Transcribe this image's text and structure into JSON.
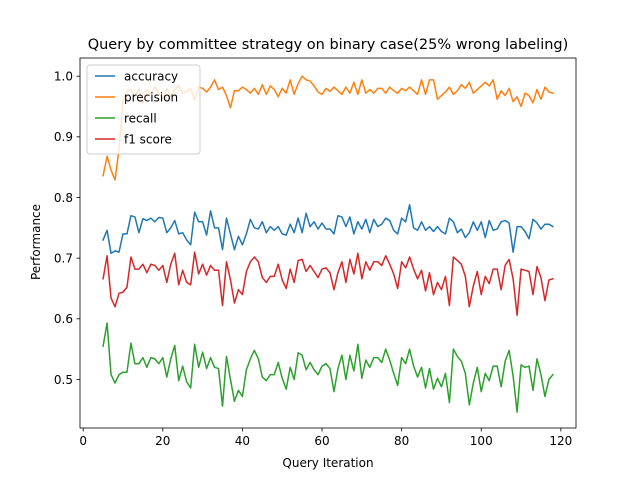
{
  "chart_data": {
    "type": "line",
    "title": "Query by committee strategy on binary case(25% wrong labeling)",
    "xlabel": "Query Iteration",
    "ylabel": "Performance",
    "xlim": [
      -0.8,
      123.8
    ],
    "ylim": [
      0.42,
      1.03
    ],
    "xticks": [
      0,
      20,
      40,
      60,
      80,
      100,
      120
    ],
    "yticks": [
      0.5,
      0.6,
      0.7,
      0.8,
      0.9,
      1.0
    ],
    "ytick_labels": [
      "0.5",
      "0.6",
      "0.7",
      "0.8",
      "0.9",
      "1.0"
    ],
    "grid": false,
    "legend_position": "top-left",
    "x": [
      5,
      6,
      7,
      8,
      9,
      10,
      11,
      12,
      13,
      14,
      15,
      16,
      17,
      18,
      19,
      20,
      21,
      22,
      23,
      24,
      25,
      26,
      27,
      28,
      29,
      30,
      31,
      32,
      33,
      34,
      35,
      36,
      37,
      38,
      39,
      40,
      41,
      42,
      43,
      44,
      45,
      46,
      47,
      48,
      49,
      50,
      51,
      52,
      53,
      54,
      55,
      56,
      57,
      58,
      59,
      60,
      61,
      62,
      63,
      64,
      65,
      66,
      67,
      68,
      69,
      70,
      71,
      72,
      73,
      74,
      75,
      76,
      77,
      78,
      79,
      80,
      81,
      82,
      83,
      84,
      85,
      86,
      87,
      88,
      89,
      90,
      91,
      92,
      93,
      94,
      95,
      96,
      97,
      98,
      99,
      100,
      101,
      102,
      103,
      104,
      105,
      106,
      107,
      108,
      109,
      110,
      111,
      112,
      113,
      114,
      115,
      116,
      117,
      118
    ],
    "series": [
      {
        "name": "accuracy",
        "color": "#1f77b4",
        "values": [
          0.73,
          0.746,
          0.708,
          0.712,
          0.71,
          0.74,
          0.74,
          0.77,
          0.768,
          0.742,
          0.765,
          0.762,
          0.766,
          0.76,
          0.767,
          0.766,
          0.742,
          0.75,
          0.762,
          0.74,
          0.742,
          0.73,
          0.722,
          0.776,
          0.76,
          0.76,
          0.738,
          0.778,
          0.75,
          0.75,
          0.714,
          0.766,
          0.74,
          0.714,
          0.736,
          0.722,
          0.74,
          0.764,
          0.75,
          0.748,
          0.76,
          0.742,
          0.752,
          0.746,
          0.752,
          0.74,
          0.738,
          0.756,
          0.742,
          0.766,
          0.742,
          0.774,
          0.752,
          0.76,
          0.748,
          0.758,
          0.748,
          0.748,
          0.74,
          0.77,
          0.768,
          0.752,
          0.768,
          0.74,
          0.76,
          0.748,
          0.764,
          0.742,
          0.764,
          0.752,
          0.756,
          0.766,
          0.762,
          0.746,
          0.74,
          0.766,
          0.76,
          0.788,
          0.75,
          0.746,
          0.76,
          0.746,
          0.752,
          0.744,
          0.752,
          0.744,
          0.74,
          0.766,
          0.76,
          0.742,
          0.748,
          0.734,
          0.742,
          0.76,
          0.746,
          0.76,
          0.734,
          0.762,
          0.746,
          0.748,
          0.76,
          0.762,
          0.758,
          0.71,
          0.752,
          0.752,
          0.744,
          0.732,
          0.764,
          0.758,
          0.748,
          0.756,
          0.756,
          0.752
        ],
        "x_override": [
          5,
          6,
          7,
          8,
          9,
          10,
          11,
          12,
          13,
          14,
          15,
          16,
          17,
          18,
          19,
          20,
          21,
          22,
          23,
          24,
          25,
          26,
          27,
          28,
          29,
          30,
          31,
          32,
          33,
          34,
          35,
          36,
          37,
          38,
          39,
          40,
          41,
          42,
          43,
          44,
          45,
          46,
          47,
          48,
          49,
          50,
          51,
          52,
          53,
          54,
          55,
          56,
          57,
          58,
          59,
          60,
          61,
          62,
          63,
          64,
          65,
          66,
          67,
          68,
          69,
          70,
          71,
          72,
          73,
          74,
          75,
          76,
          77,
          78,
          79,
          80,
          81,
          82,
          83,
          84,
          85,
          86,
          87,
          88,
          89,
          90,
          91,
          92,
          93,
          94,
          95,
          96,
          97,
          98,
          99,
          100,
          101,
          102,
          103,
          104,
          105,
          106,
          107,
          108,
          109,
          110,
          111,
          112,
          113,
          114,
          115,
          116,
          117,
          118
        ]
      },
      {
        "name": "precision",
        "color": "#ff7f0e",
        "values": [
          0.836,
          0.868,
          0.845,
          0.829,
          0.88,
          0.96,
          0.975,
          0.978,
          0.966,
          0.98,
          0.956,
          0.978,
          0.97,
          0.983,
          0.972,
          0.962,
          0.98,
          0.965,
          0.978,
          0.985,
          0.972,
          0.975,
          0.98,
          0.96,
          0.982,
          0.98,
          0.974,
          0.982,
          0.994,
          0.978,
          0.982,
          0.968,
          0.948,
          0.976,
          0.976,
          0.982,
          0.978,
          0.972,
          0.98,
          0.97,
          0.986,
          0.97,
          0.984,
          0.978,
          0.966,
          0.98,
          0.972,
          0.994,
          0.97,
          0.988,
          1.0,
          0.994,
          0.992,
          0.984,
          0.974,
          0.97,
          0.98,
          0.975,
          0.982,
          0.976,
          0.97,
          0.982,
          0.972,
          0.99,
          0.97,
          0.994,
          0.972,
          0.978,
          0.972,
          0.98,
          0.98,
          0.972,
          0.982,
          0.976,
          0.972,
          0.98,
          0.976,
          0.982,
          0.976,
          0.97,
          0.994,
          0.97,
          0.994,
          0.994,
          0.962,
          0.968,
          0.974,
          0.982,
          0.97,
          0.976,
          0.986,
          0.98,
          0.99,
          0.972,
          0.978,
          0.984,
          0.99,
          0.984,
          0.994,
          0.962,
          0.976,
          0.968,
          0.98,
          0.958,
          0.966,
          0.95,
          0.972,
          0.968,
          0.956,
          0.978,
          0.962,
          0.982,
          0.974,
          0.972
        ],
        "x_override": [
          5,
          6,
          7,
          8,
          9,
          10,
          11,
          12,
          13,
          14,
          15,
          16,
          17,
          18,
          19,
          20,
          21,
          22,
          23,
          24,
          25,
          26,
          27,
          28,
          29,
          30,
          31,
          32,
          33,
          34,
          35,
          36,
          37,
          38,
          39,
          40,
          41,
          42,
          43,
          44,
          45,
          46,
          47,
          48,
          49,
          50,
          51,
          52,
          53,
          54,
          55,
          56,
          57,
          58,
          59,
          60,
          61,
          62,
          63,
          64,
          65,
          66,
          67,
          68,
          69,
          70,
          71,
          72,
          73,
          74,
          75,
          76,
          77,
          78,
          79,
          80,
          81,
          82,
          83,
          84,
          85,
          86,
          87,
          88,
          89,
          90,
          91,
          92,
          93,
          94,
          95,
          96,
          97,
          98,
          99,
          100,
          101,
          102,
          103,
          104,
          105,
          106,
          107,
          108,
          109,
          110,
          111,
          112,
          113,
          114,
          115,
          116,
          117,
          118
        ]
      },
      {
        "name": "recall",
        "color": "#2ca02c",
        "values": [
          0.555,
          0.593,
          0.508,
          0.494,
          0.508,
          0.512,
          0.512,
          0.56,
          0.526,
          0.526,
          0.536,
          0.52,
          0.536,
          0.534,
          0.526,
          0.536,
          0.504,
          0.534,
          0.556,
          0.498,
          0.522,
          0.496,
          0.486,
          0.558,
          0.52,
          0.545,
          0.518,
          0.536,
          0.52,
          0.518,
          0.456,
          0.538,
          0.5,
          0.464,
          0.482,
          0.472,
          0.516,
          0.534,
          0.548,
          0.534,
          0.504,
          0.498,
          0.508,
          0.508,
          0.528,
          0.502,
          0.484,
          0.52,
          0.5,
          0.544,
          0.54,
          0.516,
          0.528,
          0.516,
          0.508,
          0.522,
          0.526,
          0.518,
          0.48,
          0.518,
          0.54,
          0.5,
          0.54,
          0.514,
          0.558,
          0.502,
          0.532,
          0.52,
          0.536,
          0.536,
          0.528,
          0.55,
          0.532,
          0.51,
          0.49,
          0.536,
          0.526,
          0.55,
          0.522,
          0.504,
          0.52,
          0.486,
          0.518,
          0.484,
          0.502,
          0.488,
          0.51,
          0.462,
          0.55,
          0.538,
          0.53,
          0.51,
          0.458,
          0.494,
          0.52,
          0.48,
          0.51,
          0.498,
          0.522,
          0.522,
          0.488,
          0.53,
          0.548,
          0.506,
          0.446,
          0.524,
          0.52,
          0.522,
          0.482,
          0.534,
          0.508,
          0.472,
          0.5,
          0.508
        ],
        "x_override": [
          5,
          6,
          7,
          8,
          9,
          10,
          11,
          12,
          13,
          14,
          15,
          16,
          17,
          18,
          19,
          20,
          21,
          22,
          23,
          24,
          25,
          26,
          27,
          28,
          29,
          30,
          31,
          32,
          33,
          34,
          35,
          36,
          37,
          38,
          39,
          40,
          41,
          42,
          43,
          44,
          45,
          46,
          47,
          48,
          49,
          50,
          51,
          52,
          53,
          54,
          55,
          56,
          57,
          58,
          59,
          60,
          61,
          62,
          63,
          64,
          65,
          66,
          67,
          68,
          69,
          70,
          71,
          72,
          73,
          74,
          75,
          76,
          77,
          78,
          79,
          80,
          81,
          82,
          83,
          84,
          85,
          86,
          87,
          88,
          89,
          90,
          91,
          92,
          93,
          94,
          95,
          96,
          97,
          98,
          99,
          100,
          101,
          102,
          103,
          104,
          105,
          106,
          107,
          108,
          109,
          110,
          111,
          112,
          113,
          114,
          115,
          116,
          117,
          118
        ]
      },
      {
        "name": "f1 score",
        "color": "#d62728",
        "values": [
          0.666,
          0.704,
          0.634,
          0.62,
          0.642,
          0.644,
          0.652,
          0.702,
          0.682,
          0.682,
          0.69,
          0.676,
          0.69,
          0.688,
          0.68,
          0.688,
          0.66,
          0.69,
          0.708,
          0.656,
          0.68,
          0.66,
          0.656,
          0.71,
          0.674,
          0.69,
          0.672,
          0.688,
          0.68,
          0.68,
          0.622,
          0.694,
          0.664,
          0.626,
          0.648,
          0.64,
          0.678,
          0.694,
          0.702,
          0.694,
          0.668,
          0.66,
          0.67,
          0.67,
          0.69,
          0.664,
          0.65,
          0.682,
          0.66,
          0.696,
          0.698,
          0.678,
          0.688,
          0.678,
          0.668,
          0.682,
          0.684,
          0.676,
          0.648,
          0.676,
          0.694,
          0.66,
          0.698,
          0.674,
          0.708,
          0.666,
          0.694,
          0.68,
          0.694,
          0.694,
          0.688,
          0.704,
          0.69,
          0.674,
          0.65,
          0.694,
          0.684,
          0.702,
          0.682,
          0.666,
          0.68,
          0.646,
          0.676,
          0.64,
          0.66,
          0.648,
          0.67,
          0.622,
          0.702,
          0.696,
          0.69,
          0.67,
          0.62,
          0.654,
          0.678,
          0.64,
          0.67,
          0.658,
          0.682,
          0.682,
          0.648,
          0.688,
          0.698,
          0.666,
          0.606,
          0.682,
          0.68,
          0.678,
          0.64,
          0.686,
          0.668,
          0.63,
          0.664,
          0.666
        ],
        "x_override": [
          5,
          6,
          7,
          8,
          9,
          10,
          11,
          12,
          13,
          14,
          15,
          16,
          17,
          18,
          19,
          20,
          21,
          22,
          23,
          24,
          25,
          26,
          27,
          28,
          29,
          30,
          31,
          32,
          33,
          34,
          35,
          36,
          37,
          38,
          39,
          40,
          41,
          42,
          43,
          44,
          45,
          46,
          47,
          48,
          49,
          50,
          51,
          52,
          53,
          54,
          55,
          56,
          57,
          58,
          59,
          60,
          61,
          62,
          63,
          64,
          65,
          66,
          67,
          68,
          69,
          70,
          71,
          72,
          73,
          74,
          75,
          76,
          77,
          78,
          79,
          80,
          81,
          82,
          83,
          84,
          85,
          86,
          87,
          88,
          89,
          90,
          91,
          92,
          93,
          94,
          95,
          96,
          97,
          98,
          99,
          100,
          101,
          102,
          103,
          104,
          105,
          106,
          107,
          108,
          109,
          110,
          111,
          112,
          113,
          114,
          115,
          116,
          117,
          118
        ]
      }
    ]
  }
}
